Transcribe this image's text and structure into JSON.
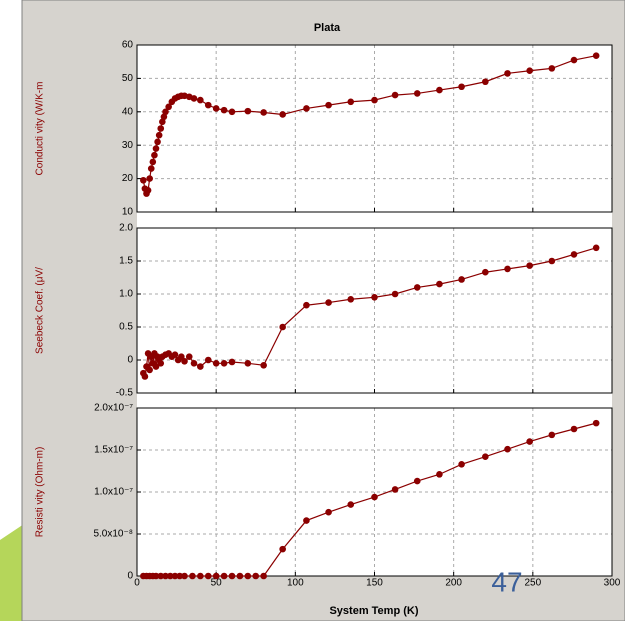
{
  "slide_number": "47",
  "chart_data": [
    {
      "type": "line",
      "title": "Plata",
      "y_label": "Conducti vity (W/K-m",
      "color": "#8b0000",
      "markers": true,
      "grid": true,
      "x": [
        4,
        5,
        6,
        7,
        8,
        9,
        10,
        11,
        12,
        13,
        14,
        15,
        16,
        17,
        18,
        20,
        22,
        24,
        26,
        28,
        30,
        33,
        36,
        40,
        45,
        50,
        55,
        60,
        70,
        80,
        92,
        107,
        121,
        135,
        150,
        163,
        177,
        191,
        205,
        220,
        234,
        248,
        262,
        276,
        290
      ],
      "values": [
        19.5,
        17,
        15.5,
        16.5,
        20,
        23,
        25,
        27,
        29,
        31,
        33,
        35,
        37,
        38.5,
        40,
        41.5,
        43,
        44,
        44.5,
        44.8,
        44.8,
        44.5,
        44,
        43.5,
        42,
        41,
        40.5,
        40,
        40.2,
        39.8,
        39.2,
        41,
        42,
        43,
        43.5,
        45,
        45.5,
        46.5,
        47.5,
        49,
        51.5,
        52.3,
        53,
        55.5,
        56.8
      ],
      "xlim": [
        0,
        300
      ],
      "xticks": [
        0,
        50,
        100,
        150,
        200,
        250,
        300
      ],
      "ylim": [
        10,
        60
      ],
      "yticks": [
        10,
        20,
        30,
        40,
        50,
        60
      ]
    },
    {
      "type": "line",
      "y_label": "Seebeck Coef. (μV/",
      "color": "#8b0000",
      "markers": true,
      "grid": true,
      "x": [
        4,
        5,
        6,
        7,
        8,
        9,
        10,
        11,
        12,
        13,
        14,
        15,
        16,
        18,
        20,
        22,
        24,
        26,
        28,
        30,
        33,
        36,
        40,
        45,
        50,
        55,
        60,
        70,
        80,
        92,
        107,
        121,
        135,
        150,
        163,
        177,
        191,
        205,
        220,
        234,
        248,
        262,
        276,
        290
      ],
      "values": [
        -0.2,
        -0.25,
        -0.1,
        0.1,
        -0.15,
        0.05,
        -0.05,
        0.1,
        -0.1,
        0.05,
        0,
        -0.05,
        0.05,
        0.08,
        0.1,
        0.05,
        0.08,
        0,
        0.05,
        -0.02,
        0.05,
        -0.05,
        -0.1,
        0,
        -0.05,
        -0.05,
        -0.03,
        -0.05,
        -0.08,
        0.5,
        0.83,
        0.87,
        0.92,
        0.95,
        1.0,
        1.1,
        1.15,
        1.22,
        1.33,
        1.38,
        1.43,
        1.5,
        1.6,
        1.7
      ],
      "xlim": [
        0,
        300
      ],
      "xticks": [
        0,
        50,
        100,
        150,
        200,
        250,
        300
      ],
      "ylim": [
        -0.5,
        2.0
      ],
      "yticks": [
        -0.5,
        0,
        0.5,
        {
          "value": 1.0,
          "label": "1.0"
        },
        1.5,
        {
          "value": 2.0,
          "label": "2.0"
        }
      ]
    },
    {
      "type": "line",
      "y_label": "Resisti vity (Ohm-m)",
      "x_label": "System Temp (K)",
      "color": "#8b0000",
      "markers": true,
      "grid": true,
      "x": [
        4,
        6,
        8,
        10,
        12,
        15,
        18,
        21,
        24,
        27,
        30,
        35,
        40,
        45,
        50,
        55,
        60,
        65,
        70,
        75,
        80,
        92,
        107,
        121,
        135,
        150,
        163,
        177,
        191,
        205,
        220,
        234,
        248,
        262,
        276,
        290
      ],
      "values": [
        0,
        0,
        0,
        0,
        0,
        0,
        0,
        0,
        0,
        0,
        0,
        0,
        0,
        0,
        0,
        0,
        0,
        0,
        0,
        0,
        0,
        3.2e-08,
        6.6e-08,
        7.6e-08,
        8.5e-08,
        9.4e-08,
        1.03e-07,
        1.13e-07,
        1.21e-07,
        1.33e-07,
        1.42e-07,
        1.51e-07,
        1.6e-07,
        1.68e-07,
        1.75e-07,
        1.82e-07
      ],
      "xlim": [
        0,
        300
      ],
      "xticks": [
        0,
        50,
        100,
        150,
        200,
        250,
        300
      ],
      "ylim": [
        0,
        2e-07
      ],
      "yticks": [
        0,
        {
          "value": 5e-08,
          "label": "5.0x10⁻⁸"
        },
        {
          "value": 1e-07,
          "label": "1.0x10⁻⁷"
        },
        {
          "value": 1.5e-07,
          "label": "1.5x10⁻⁷"
        },
        {
          "value": 2e-07,
          "label": "2.0x10⁻⁷"
        }
      ]
    }
  ]
}
